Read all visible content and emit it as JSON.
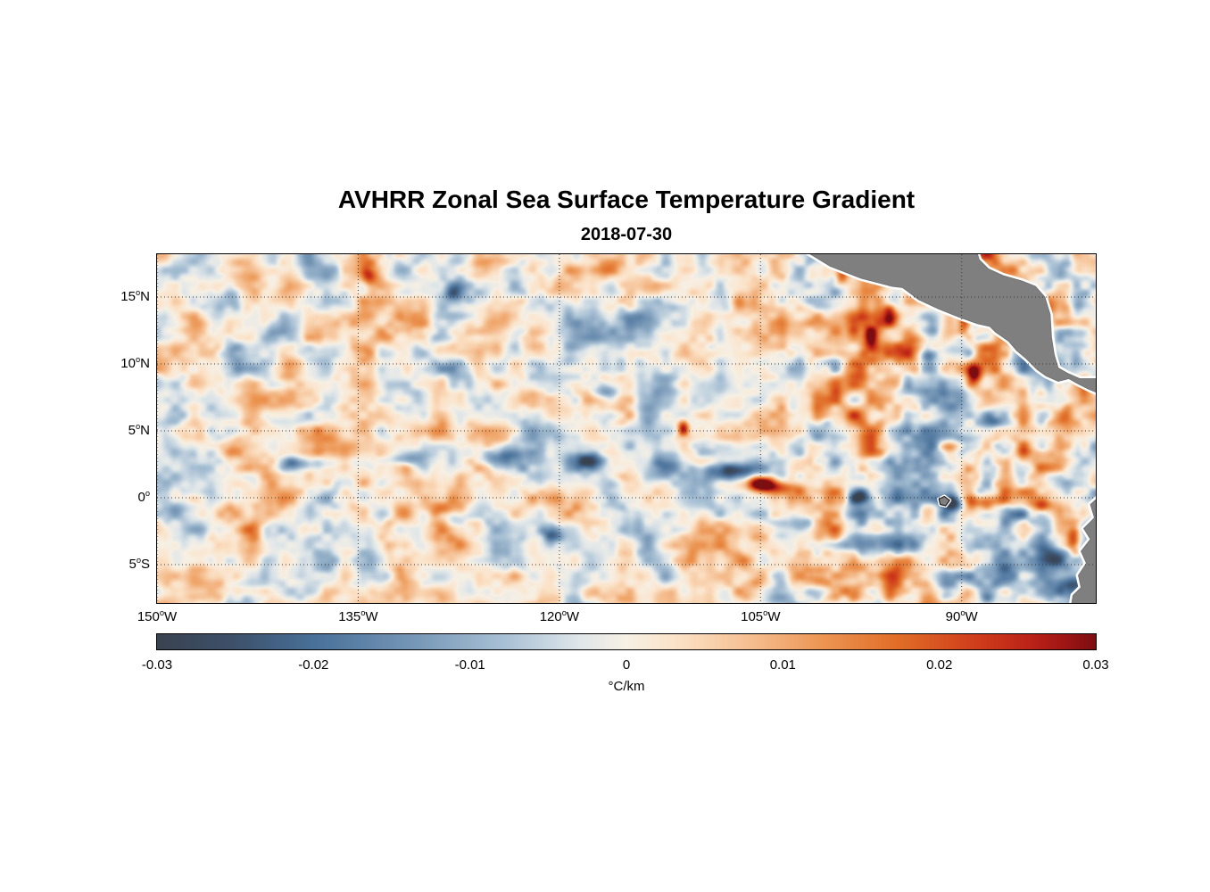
{
  "chart_data": {
    "type": "heatmap",
    "title": "AVHRR Zonal Sea Surface Temperature Gradient",
    "subtitle": "2018-07-30",
    "variable": "zonal sea surface temperature gradient",
    "lon_range": [
      -150,
      -80
    ],
    "lat_range": [
      -7.87,
      18.2
    ],
    "value_range": [
      -0.03,
      0.03
    ],
    "x_ticks": [
      {
        "lon": -150,
        "num": "150",
        "sup": "o",
        "suffix": "W"
      },
      {
        "lon": -135,
        "num": "135",
        "sup": "o",
        "suffix": "W"
      },
      {
        "lon": -120,
        "num": "120",
        "sup": "o",
        "suffix": "W"
      },
      {
        "lon": -105,
        "num": "105",
        "sup": "o",
        "suffix": "W"
      },
      {
        "lon": -90,
        "num": "90",
        "sup": "o",
        "suffix": "W"
      }
    ],
    "y_ticks": [
      {
        "lat": 15,
        "num": "15",
        "sup": "o",
        "suffix": "N"
      },
      {
        "lat": 10,
        "num": "10",
        "sup": "o",
        "suffix": "N"
      },
      {
        "lat": 5,
        "num": "5",
        "sup": "o",
        "suffix": "N"
      },
      {
        "lat": 0,
        "num": "0",
        "sup": "o",
        "suffix": ""
      },
      {
        "lat": -5,
        "num": "5",
        "sup": "o",
        "suffix": "S"
      }
    ],
    "grid": {
      "lats": [
        15,
        10,
        5,
        0,
        -5
      ],
      "lons": [
        -150,
        -135,
        -120,
        -105,
        -90
      ],
      "style": "dotted",
      "color": "#3a3a3a"
    },
    "colorbar": {
      "orientation": "horizontal",
      "tick_values": [
        -0.03,
        -0.02,
        -0.01,
        0,
        0.01,
        0.02,
        0.03
      ],
      "tick_labels": [
        "-0.03",
        "-0.02",
        "-0.01",
        "0",
        "0.01",
        "0.02",
        "0.03"
      ],
      "label": "°C/km"
    },
    "colormap": [
      {
        "pos": 0.0,
        "color": "#394250"
      },
      {
        "pos": 0.08,
        "color": "#3d5069"
      },
      {
        "pos": 0.17,
        "color": "#49719a"
      },
      {
        "pos": 0.27,
        "color": "#7495b5"
      },
      {
        "pos": 0.37,
        "color": "#a8c0d4"
      },
      {
        "pos": 0.45,
        "color": "#dfe6e9"
      },
      {
        "pos": 0.5,
        "color": "#f7f0e4"
      },
      {
        "pos": 0.55,
        "color": "#fbe3c9"
      },
      {
        "pos": 0.63,
        "color": "#f5bf92"
      },
      {
        "pos": 0.71,
        "color": "#ec9552"
      },
      {
        "pos": 0.79,
        "color": "#e06c27"
      },
      {
        "pos": 0.87,
        "color": "#d03f1c"
      },
      {
        "pos": 0.93,
        "color": "#bb2317"
      },
      {
        "pos": 0.97,
        "color": "#9c1414"
      },
      {
        "pos": 1.0,
        "color": "#7c0e12"
      }
    ],
    "land_color": "#7f7f7f",
    "coast_halo_color": "#ffffff",
    "land_polygons": {
      "central_america": [
        [
          -102.6,
          19.0
        ],
        [
          -99.8,
          17.3
        ],
        [
          -97.5,
          16.4
        ],
        [
          -95.2,
          15.8
        ],
        [
          -94.4,
          15.7
        ],
        [
          -93.2,
          14.8
        ],
        [
          -91.7,
          14.1
        ],
        [
          -90.2,
          13.5
        ],
        [
          -88.8,
          13.0
        ],
        [
          -87.9,
          12.8
        ],
        [
          -87.5,
          12.4
        ],
        [
          -86.5,
          11.7
        ],
        [
          -85.9,
          11.0
        ],
        [
          -85.2,
          10.4
        ],
        [
          -84.4,
          9.6
        ],
        [
          -83.7,
          9.1
        ],
        [
          -82.8,
          8.7
        ],
        [
          -82.0,
          8.9
        ],
        [
          -81.3,
          8.5
        ],
        [
          -80.5,
          8.1
        ],
        [
          -79.3,
          7.6
        ],
        [
          -79.3,
          8.9
        ],
        [
          -81.2,
          8.9
        ],
        [
          -82.1,
          9.3
        ],
        [
          -82.8,
          9.7
        ],
        [
          -83.1,
          10.7
        ],
        [
          -83.3,
          12.0
        ],
        [
          -83.4,
          13.7
        ],
        [
          -83.8,
          15.0
        ],
        [
          -84.5,
          15.8
        ],
        [
          -85.5,
          16.2
        ],
        [
          -86.9,
          16.6
        ],
        [
          -88.0,
          17.1
        ],
        [
          -88.7,
          17.8
        ],
        [
          -89.2,
          19.5
        ]
      ],
      "south_america": [
        [
          -79.5,
          0.3
        ],
        [
          -80.4,
          -0.5
        ],
        [
          -80.1,
          -1.5
        ],
        [
          -80.9,
          -2.3
        ],
        [
          -80.4,
          -3.1
        ],
        [
          -81.1,
          -4.0
        ],
        [
          -80.7,
          -4.9
        ],
        [
          -81.3,
          -5.8
        ],
        [
          -81.1,
          -6.7
        ],
        [
          -81.7,
          -7.3
        ],
        [
          -81.9,
          -8.5
        ],
        [
          -79.5,
          -8.5
        ]
      ],
      "galapagos": [
        [
          -91.7,
          -0.1
        ],
        [
          -91.3,
          0.1
        ],
        [
          -90.9,
          -0.2
        ],
        [
          -91.2,
          -0.6
        ],
        [
          -91.6,
          -0.5
        ]
      ]
    },
    "field_model": {
      "seed": 20180730,
      "bias": 0.0012,
      "octaves": [
        {
          "cell": 95,
          "amp": 0.005
        },
        {
          "cell": 42,
          "amp": 0.008
        },
        {
          "cell": 19,
          "amp": 0.0085
        },
        {
          "cell": 9,
          "amp": 0.0035
        }
      ],
      "east_boost": {
        "start_lon": -106,
        "max_mult": 1.45
      },
      "anomalies": [
        {
          "lon": -104.9,
          "lat": 1.1,
          "value": 0.034,
          "rx": 1.3,
          "ry": 0.55
        },
        {
          "lon": -103.6,
          "lat": 0.7,
          "value": 0.018,
          "rx": 1.6,
          "ry": 0.5
        },
        {
          "lon": -107.2,
          "lat": 2.0,
          "value": -0.026,
          "rx": 2.2,
          "ry": 0.7
        },
        {
          "lon": -112.3,
          "lat": 2.4,
          "value": -0.024,
          "rx": 1.8,
          "ry": 0.9
        },
        {
          "lon": -124.6,
          "lat": 3.2,
          "value": -0.02,
          "rx": 1.6,
          "ry": 0.7
        },
        {
          "lon": -120.6,
          "lat": -2.6,
          "value": -0.022,
          "rx": 0.8,
          "ry": 0.7
        },
        {
          "lon": -128.3,
          "lat": -1.5,
          "value": -0.012,
          "rx": 1.6,
          "ry": 0.5
        },
        {
          "lon": -90.6,
          "lat": -0.4,
          "value": -0.024,
          "rx": 0.9,
          "ry": 0.5
        },
        {
          "lon": -88.6,
          "lat": -0.3,
          "value": 0.022,
          "rx": 1.6,
          "ry": 0.6
        },
        {
          "lon": -86.0,
          "lat": -1.2,
          "value": -0.02,
          "rx": 1.2,
          "ry": 0.8
        },
        {
          "lon": -81.6,
          "lat": -3.1,
          "value": 0.034,
          "rx": 0.55,
          "ry": 1.1
        },
        {
          "lon": -83.2,
          "lat": -4.6,
          "value": -0.026,
          "rx": 1.4,
          "ry": 0.9
        },
        {
          "lon": -81.9,
          "lat": -6.5,
          "value": -0.022,
          "rx": 1.2,
          "ry": 0.8
        },
        {
          "lon": -95.4,
          "lat": 13.6,
          "value": 0.028,
          "rx": 0.5,
          "ry": 0.8
        },
        {
          "lon": -96.8,
          "lat": 12.1,
          "value": 0.022,
          "rx": 0.5,
          "ry": 0.7
        },
        {
          "lon": -89.8,
          "lat": 13.2,
          "value": 0.03,
          "rx": 0.5,
          "ry": 0.9
        },
        {
          "lon": -89.2,
          "lat": 9.2,
          "value": 0.026,
          "rx": 0.5,
          "ry": 0.8
        },
        {
          "lon": -92.6,
          "lat": 10.6,
          "value": -0.022,
          "rx": 0.7,
          "ry": 0.7
        },
        {
          "lon": -87.8,
          "lat": 6.0,
          "value": -0.018,
          "rx": 0.9,
          "ry": 0.7
        },
        {
          "lon": -110.8,
          "lat": 5.2,
          "value": 0.024,
          "rx": 0.4,
          "ry": 0.6
        },
        {
          "lon": -134.2,
          "lat": 16.6,
          "value": 0.02,
          "rx": 0.6,
          "ry": 0.8
        },
        {
          "lon": -127.9,
          "lat": 15.3,
          "value": -0.018,
          "rx": 0.8,
          "ry": 0.8
        },
        {
          "lon": -144.5,
          "lat": 14.8,
          "value": -0.016,
          "rx": 0.7,
          "ry": 0.9
        },
        {
          "lon": -139.5,
          "lat": 2.6,
          "value": -0.016,
          "rx": 1.6,
          "ry": 0.5
        },
        {
          "lon": -131.5,
          "lat": 2.9,
          "value": -0.018,
          "rx": 1.2,
          "ry": 0.5
        },
        {
          "lon": -99.0,
          "lat": 16.5,
          "value": 0.02,
          "rx": 0.5,
          "ry": 0.6
        },
        {
          "lon": -116.5,
          "lat": 8.0,
          "value": -0.016,
          "rx": 1.0,
          "ry": 0.6
        },
        {
          "lon": -102.0,
          "lat": -2.0,
          "value": -0.018,
          "rx": 1.0,
          "ry": 0.7
        },
        {
          "lon": -97.5,
          "lat": 0.2,
          "value": -0.02,
          "rx": 0.8,
          "ry": 0.5
        },
        {
          "lon": -85.5,
          "lat": 1.5,
          "value": -0.022,
          "rx": 0.8,
          "ry": 0.9
        },
        {
          "lon": -84.0,
          "lat": -0.5,
          "value": 0.02,
          "rx": 0.8,
          "ry": 0.6
        },
        {
          "lon": -118.0,
          "lat": 2.8,
          "value": -0.024,
          "rx": 1.4,
          "ry": 0.7
        }
      ]
    }
  }
}
